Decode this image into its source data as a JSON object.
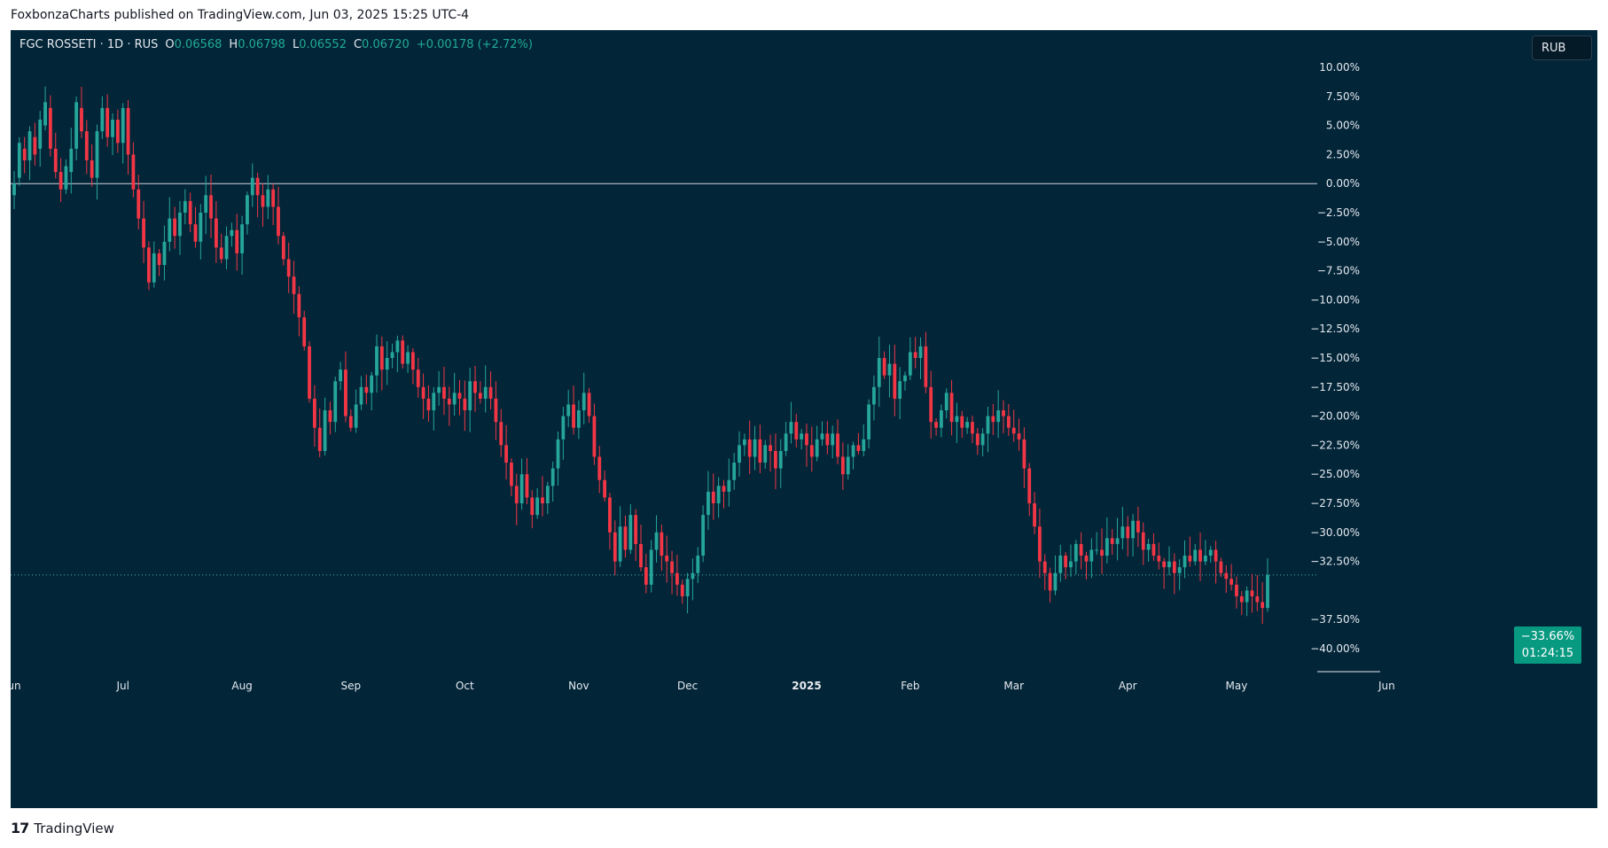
{
  "header": {
    "publish_line": "FoxbonzaCharts published on TradingView.com, Jun 03, 2025 15:25 UTC-4"
  },
  "legend": {
    "symbol": "FGC ROSSETI · 1D · RUS",
    "open_label": "O",
    "open": "0.06568",
    "high_label": "H",
    "high": "0.06798",
    "low_label": "L",
    "low": "0.06552",
    "close_label": "C",
    "close": "0.06720",
    "change": "+0.00178 (+2.72%)"
  },
  "currency": "RUB",
  "price_label": {
    "percent": "−33.66%",
    "countdown": "01:24:15"
  },
  "footer": {
    "brand": "TradingView",
    "logo": "tradingview-logo"
  },
  "colors": {
    "background": "#022538",
    "up": "#26a69a",
    "down": "#f23645",
    "baseline": "#d1d4dc",
    "axis_text": "#e6e9ef"
  },
  "chart_data": {
    "type": "candlestick",
    "scale": "percent",
    "ylim": [
      -42,
      11.5
    ],
    "baseline": 0,
    "current_value": -33.66,
    "y_ticks": [
      "10.00%",
      "7.50%",
      "5.00%",
      "2.50%",
      "0.00%",
      "−2.50%",
      "−5.00%",
      "−7.50%",
      "−10.00%",
      "−12.50%",
      "−15.00%",
      "−17.50%",
      "−20.00%",
      "−22.50%",
      "−25.00%",
      "−27.50%",
      "−30.00%",
      "−32.50%",
      "−37.50%",
      "−40.00%"
    ],
    "y_tick_values": [
      10,
      7.5,
      5,
      2.5,
      0,
      -2.5,
      -5,
      -7.5,
      -10,
      -12.5,
      -15,
      -17.5,
      -20,
      -22.5,
      -25,
      -27.5,
      -30,
      -32.5,
      -37.5,
      -40
    ],
    "x_ticks": [
      {
        "label": "un",
        "bold": false
      },
      {
        "label": "Jul",
        "bold": false
      },
      {
        "label": "Aug",
        "bold": false
      },
      {
        "label": "Sep",
        "bold": false
      },
      {
        "label": "Oct",
        "bold": false
      },
      {
        "label": "Nov",
        "bold": false
      },
      {
        "label": "Dec",
        "bold": false
      },
      {
        "label": "2025",
        "bold": true
      },
      {
        "label": "Feb",
        "bold": false
      },
      {
        "label": "Mar",
        "bold": false
      },
      {
        "label": "Apr",
        "bold": false
      },
      {
        "label": "May",
        "bold": false
      },
      {
        "label": "Jun",
        "bold": false
      }
    ],
    "x_tick_bar_index": [
      0,
      21,
      44,
      65,
      87,
      109,
      130,
      153,
      173,
      193,
      215,
      236,
      265
    ],
    "closes": [
      0.0,
      3.5,
      2.0,
      4.5,
      2.5,
      5.5,
      7.0,
      3.0,
      1.0,
      -0.5,
      1.5,
      3.0,
      7.0,
      4.5,
      2.0,
      0.5,
      4.5,
      6.5,
      4.0,
      5.5,
      3.5,
      6.5,
      2.5,
      -0.5,
      -3.0,
      -5.5,
      -8.5,
      -6.0,
      -7.0,
      -5.0,
      -3.0,
      -4.5,
      -2.5,
      -1.5,
      -3.5,
      -5.0,
      -2.5,
      -1.0,
      -3.0,
      -5.5,
      -6.5,
      -4.5,
      -4.0,
      -6.0,
      -3.5,
      -1.0,
      0.5,
      -1.0,
      -2.0,
      -0.5,
      -2.0,
      -4.5,
      -6.5,
      -8.0,
      -9.5,
      -11.5,
      -14.0,
      -18.5,
      -21.0,
      -23.0,
      -19.5,
      -20.5,
      -17.0,
      -16.0,
      -20.0,
      -21.0,
      -19.0,
      -17.5,
      -18.0,
      -16.5,
      -14.0,
      -16.0,
      -15.0,
      -14.5,
      -13.5,
      -15.5,
      -14.5,
      -16.0,
      -17.5,
      -18.5,
      -19.5,
      -18.0,
      -17.5,
      -18.5,
      -19.0,
      -18.0,
      -18.5,
      -19.5,
      -17.0,
      -18.0,
      -18.5,
      -17.5,
      -18.5,
      -20.5,
      -22.5,
      -24.0,
      -26.0,
      -27.5,
      -25.0,
      -27.0,
      -28.5,
      -27.0,
      -27.5,
      -26.0,
      -24.5,
      -22.0,
      -20.0,
      -19.0,
      -21.0,
      -19.5,
      -18.0,
      -20.0,
      -23.5,
      -25.5,
      -27.0,
      -30.0,
      -32.5,
      -29.5,
      -31.5,
      -28.5,
      -31.0,
      -33.0,
      -34.5,
      -31.5,
      -30.0,
      -32.0,
      -32.5,
      -33.5,
      -34.5,
      -35.5,
      -34.0,
      -33.5,
      -32.0,
      -28.5,
      -26.5,
      -27.5,
      -26.0,
      -26.5,
      -25.5,
      -24.0,
      -22.5,
      -22.0,
      -23.5,
      -22.0,
      -24.0,
      -22.5,
      -23.0,
      -24.5,
      -23.0,
      -21.5,
      -20.5,
      -22.0,
      -21.5,
      -22.5,
      -23.5,
      -22.0,
      -21.5,
      -22.5,
      -21.5,
      -23.5,
      -25.0,
      -23.5,
      -22.5,
      -23.0,
      -22.0,
      -19.0,
      -17.5,
      -15.0,
      -16.5,
      -15.5,
      -18.5,
      -17.0,
      -16.5,
      -14.5,
      -15.0,
      -14.0,
      -17.5,
      -20.5,
      -21.0,
      -19.5,
      -18.0,
      -20.5,
      -20.0,
      -21.0,
      -20.5,
      -21.5,
      -22.5,
      -21.5,
      -20.0,
      -20.5,
      -19.5,
      -20.0,
      -21.0,
      -21.5,
      -22.0,
      -24.5,
      -27.5,
      -29.5,
      -32.5,
      -33.5,
      -35.0,
      -33.5,
      -32.0,
      -33.0,
      -32.5,
      -31.0,
      -32.0,
      -32.5,
      -31.5,
      -31.5,
      -32.0,
      -30.5,
      -31.0,
      -30.5,
      -29.5,
      -30.5,
      -29.0,
      -30.0,
      -31.5,
      -31.0,
      -32.0,
      -32.5,
      -33.0,
      -32.5,
      -33.5,
      -33.0,
      -32.0,
      -32.5,
      -31.5,
      -32.5,
      -32.0,
      -31.5,
      -32.5,
      -33.5,
      -34.0,
      -34.5,
      -35.5,
      -36.0,
      -35.0,
      -35.5,
      -36.0,
      -36.5,
      -33.66
    ],
    "opens": [
      -1.0,
      0.5,
      3.0,
      2.0,
      4.0,
      3.0,
      5.0,
      6.5,
      3.0,
      1.0,
      -0.5,
      1.0,
      3.0,
      6.5,
      4.5,
      2.0,
      0.5,
      4.5,
      6.5,
      4.0,
      5.5,
      3.5,
      6.5,
      2.5,
      -0.5,
      -3.0,
      -5.5,
      -8.5,
      -6.0,
      -7.0,
      -5.0,
      -3.0,
      -4.5,
      -2.5,
      -1.5,
      -3.5,
      -5.0,
      -2.5,
      -1.0,
      -3.0,
      -5.5,
      -6.5,
      -4.5,
      -4.0,
      -6.0,
      -3.5,
      -1.0,
      0.5,
      -1.0,
      -2.0,
      -0.5,
      -2.0,
      -4.5,
      -6.5,
      -8.0,
      -9.5,
      -11.5,
      -14.0,
      -18.5,
      -21.0,
      -23.0,
      -19.5,
      -20.5,
      -17.0,
      -16.0,
      -20.0,
      -21.0,
      -19.0,
      -17.5,
      -18.0,
      -16.5,
      -14.0,
      -16.0,
      -15.0,
      -14.5,
      -13.5,
      -15.5,
      -14.5,
      -16.0,
      -17.5,
      -18.5,
      -19.5,
      -18.0,
      -17.5,
      -18.5,
      -19.0,
      -18.0,
      -18.5,
      -19.5,
      -17.0,
      -18.0,
      -18.5,
      -17.5,
      -18.5,
      -20.5,
      -22.5,
      -24.0,
      -26.0,
      -27.5,
      -25.0,
      -27.0,
      -28.5,
      -27.0,
      -27.5,
      -26.0,
      -24.5,
      -22.0,
      -20.0,
      -19.0,
      -21.0,
      -19.5,
      -18.0,
      -20.0,
      -23.5,
      -25.5,
      -27.0,
      -30.0,
      -32.5,
      -29.5,
      -31.5,
      -28.5,
      -31.0,
      -33.0,
      -34.5,
      -31.5,
      -30.0,
      -32.0,
      -32.5,
      -33.5,
      -34.5,
      -35.5,
      -34.0,
      -33.5,
      -32.0,
      -28.5,
      -26.5,
      -27.5,
      -26.0,
      -26.5,
      -25.5,
      -24.0,
      -22.5,
      -22.0,
      -23.5,
      -22.0,
      -24.0,
      -22.5,
      -23.0,
      -24.5,
      -23.0,
      -21.5,
      -20.5,
      -22.0,
      -21.5,
      -22.5,
      -23.5,
      -22.0,
      -21.5,
      -22.5,
      -21.5,
      -23.5,
      -25.0,
      -23.5,
      -22.5,
      -23.0,
      -22.0,
      -19.0,
      -17.5,
      -15.0,
      -16.5,
      -15.5,
      -18.5,
      -17.0,
      -16.5,
      -14.5,
      -15.0,
      -14.0,
      -17.5,
      -20.5,
      -21.0,
      -19.5,
      -18.0,
      -20.5,
      -20.0,
      -21.0,
      -20.5,
      -21.5,
      -22.5,
      -21.5,
      -20.0,
      -20.5,
      -19.5,
      -20.0,
      -21.0,
      -21.5,
      -22.0,
      -24.5,
      -27.5,
      -29.5,
      -32.5,
      -33.5,
      -35.0,
      -33.5,
      -32.0,
      -33.0,
      -32.5,
      -31.0,
      -32.0,
      -32.5,
      -31.5,
      -31.5,
      -32.0,
      -30.5,
      -31.0,
      -30.5,
      -29.5,
      -30.5,
      -29.0,
      -30.0,
      -31.5,
      -31.0,
      -32.0,
      -32.5,
      -33.0,
      -32.5,
      -33.5,
      -33.0,
      -32.0,
      -32.5,
      -31.5,
      -32.5,
      -32.0,
      -31.5,
      -32.5,
      -33.5,
      -34.0,
      -34.5,
      -35.5,
      -36.0,
      -35.0,
      -35.5,
      -36.0,
      -36.5
    ]
  }
}
